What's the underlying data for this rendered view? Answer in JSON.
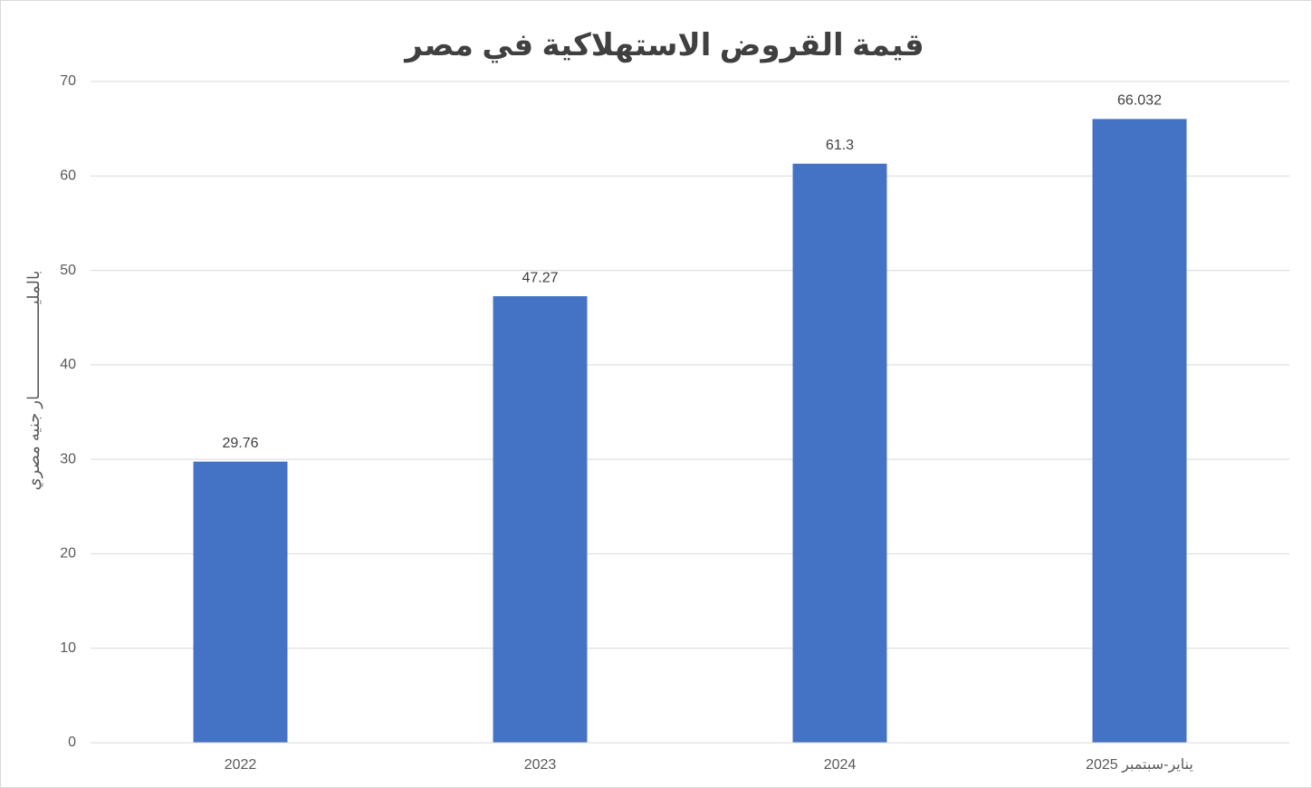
{
  "chart_data": {
    "type": "bar",
    "title": "قيمة القروض الاستهلاكية في مصر",
    "y_label": "بالمليـــــــــــــــــــار جنيه مصري",
    "categories": [
      "2022",
      "2023",
      "2024",
      "يناير-سبتمبر 2025"
    ],
    "values": [
      29.76,
      47.27,
      61.3,
      66.032
    ],
    "color": "#4472c4",
    "ylim": [
      0,
      70
    ],
    "yticks": [
      0,
      10,
      20,
      30,
      40,
      50,
      60,
      70
    ],
    "grid": true,
    "data_labels": true
  }
}
